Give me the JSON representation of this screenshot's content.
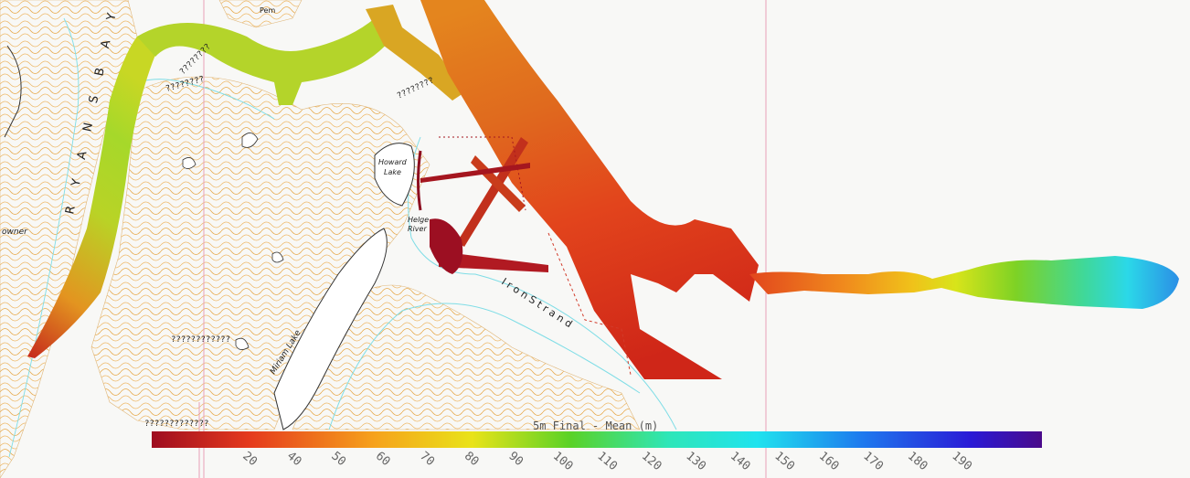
{
  "map": {
    "place_names": {
      "ryans_bay": "R Y A N S   B A Y",
      "howard_lake": [
        "Howard",
        "Lake"
      ],
      "helge_river": [
        "Helge",
        "River"
      ],
      "iron_strand": "I r o n   S t r a n d",
      "miriam_lake": "Miriam Lake",
      "owner": "owner",
      "pem": "Pem"
    },
    "unknown_labels": [
      "????????",
      "????????",
      "????????",
      "????????????",
      "?????????????"
    ]
  },
  "legend": {
    "title": "5m Final - Mean (m)",
    "ticks": [
      "20",
      "40",
      "50",
      "60",
      "70",
      "80",
      "90",
      "100",
      "110",
      "120",
      "130",
      "140",
      "150",
      "160",
      "170",
      "180",
      "190"
    ],
    "colors": [
      "#9e0d20",
      "#e53a1d",
      "#f6a21c",
      "#e9e319",
      "#5ad226",
      "#2ee6b8",
      "#1fe3ee",
      "#1e78ee",
      "#2a1ad6",
      "#4a0a8a"
    ]
  }
}
